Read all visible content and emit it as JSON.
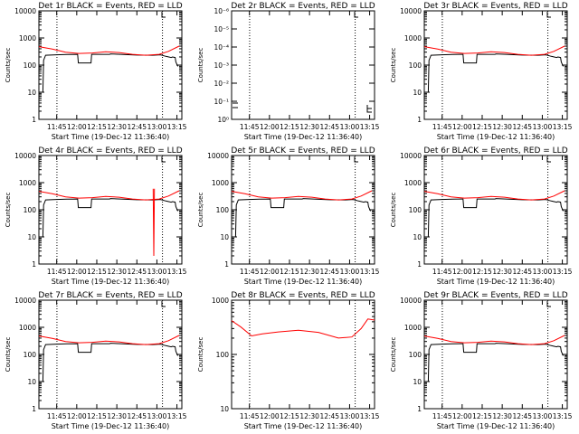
{
  "panels": [
    {
      "title": "Det 1r BLACK = Events, RED = LLD",
      "yticks": [
        "1",
        "10",
        "100",
        "1000",
        "10000"
      ],
      "ylabel": "Counts/sec",
      "xlabel": "Start Time (19-Dec-12 11:36:40)",
      "xticks": [
        "11:45",
        "12:00",
        "12:15",
        "12:30",
        "12:45",
        "13:00",
        "13:15"
      ],
      "type": "normal"
    },
    {
      "title": "Det 2r BLACK = Events, RED = LLD",
      "yticks": [
        "10⁰",
        "10⁻¹",
        "10⁻²",
        "10⁻³",
        "10⁻⁴",
        "10⁻⁵",
        "10⁻⁶"
      ],
      "ylabel": "Counts/sec",
      "xlabel": "Start Time (19-Dec-12 11:36:40)",
      "xticks": [
        "11:45",
        "12:00",
        "12:15",
        "12:30",
        "12:45",
        "13:00",
        "13:15"
      ],
      "type": "empty"
    },
    {
      "title": "Det 3r BLACK = Events, RED = LLD",
      "yticks": [
        "1",
        "10",
        "100",
        "1000",
        "10000"
      ],
      "ylabel": "Counts/sec",
      "xlabel": "Start Time (19-Dec-12 11:36:40)",
      "xticks": [
        "11:45",
        "12:00",
        "12:15",
        "12:30",
        "12:45",
        "13:00",
        "13:15"
      ],
      "type": "normal"
    },
    {
      "title": "Det 4r BLACK = Events, RED = LLD",
      "yticks": [
        "1",
        "10",
        "100",
        "1000",
        "10000"
      ],
      "ylabel": "Counts/sec",
      "xlabel": "Start Time (19-Dec-12 11:36:40)",
      "xticks": [
        "11:45",
        "12:00",
        "12:15",
        "12:30",
        "12:45",
        "13:00",
        "13:15"
      ],
      "type": "normal",
      "spike": true
    },
    {
      "title": "Det 5r BLACK = Events, RED = LLD",
      "yticks": [
        "1",
        "10",
        "100",
        "1000",
        "10000"
      ],
      "ylabel": "Counts/sec",
      "xlabel": "Start Time (19-Dec-12 11:36:40)",
      "xticks": [
        "11:45",
        "12:00",
        "12:15",
        "12:30",
        "12:45",
        "13:00",
        "13:15"
      ],
      "type": "normal"
    },
    {
      "title": "Det 6r BLACK = Events, RED = LLD",
      "yticks": [
        "1",
        "10",
        "100",
        "1000",
        "10000"
      ],
      "ylabel": "Counts/sec",
      "xlabel": "Start Time (19-Dec-12 11:36:40)",
      "xticks": [
        "11:45",
        "12:00",
        "12:15",
        "12:30",
        "12:45",
        "13:00",
        "13:15"
      ],
      "type": "normal"
    },
    {
      "title": "Det 7r BLACK = Events, RED = LLD",
      "yticks": [
        "1",
        "10",
        "100",
        "1000",
        "10000"
      ],
      "ylabel": "Counts/sec",
      "xlabel": "Start Time (19-Dec-12 11:36:40)",
      "xticks": [
        "11:45",
        "12:00",
        "12:15",
        "12:30",
        "12:45",
        "13:00",
        "13:15"
      ],
      "type": "normal"
    },
    {
      "title": "Det 8r BLACK = Events, RED = LLD",
      "yticks": [
        "10",
        "100",
        "1000"
      ],
      "ylabel": "Counts/sec",
      "xlabel": "Start Time (19-Dec-12 11:36:40)",
      "xticks": [
        "11:45",
        "12:00",
        "12:15",
        "12:30",
        "12:45",
        "13:00",
        "13:15"
      ],
      "type": "redonly"
    },
    {
      "title": "Det 9r BLACK = Events, RED = LLD",
      "yticks": [
        "1",
        "10",
        "100",
        "1000",
        "10000"
      ],
      "ylabel": "Counts/sec",
      "xlabel": "Start Time (19-Dec-12 11:36:40)",
      "xticks": [
        "11:45",
        "12:00",
        "12:15",
        "12:30",
        "12:45",
        "13:00",
        "13:15"
      ],
      "type": "normal"
    }
  ],
  "chart_data": {
    "type": "line",
    "x_unit": "minutes since 11:36:40",
    "x_range_minutes": [
      -5,
      102
    ],
    "dotted_vlines_minutes": [
      8.5,
      87.5
    ],
    "colors": {
      "events": "#000000",
      "lld": "#ff0000"
    },
    "red_lld": {
      "x": [
        -5,
        5,
        15,
        25,
        35,
        45,
        55,
        65,
        75,
        85,
        92,
        100
      ],
      "y": [
        480,
        390,
        300,
        270,
        280,
        310,
        290,
        250,
        230,
        250,
        320,
        500
      ]
    },
    "black_events": {
      "x": [
        -2,
        -1.5,
        0,
        8,
        16,
        24,
        24.5,
        34,
        34.5,
        48,
        48.5,
        58,
        68,
        80,
        86,
        90,
        94,
        95,
        97,
        97.5,
        99
      ],
      "y": [
        10,
        150,
        230,
        240,
        245,
        250,
        120,
        120,
        250,
        250,
        260,
        245,
        235,
        230,
        240,
        210,
        190,
        200,
        190,
        130,
        90
      ]
    },
    "det8r_red": {
      "x": [
        -5,
        2,
        10,
        18,
        30,
        45,
        60,
        75,
        85,
        92,
        97,
        102
      ],
      "y": [
        420,
        320,
        220,
        240,
        260,
        280,
        255,
        200,
        210,
        300,
        450,
        430
      ]
    },
    "det4r_spike": {
      "x": [
        80.5,
        81,
        81.5
      ],
      "y": [
        600,
        2,
        600
      ]
    }
  }
}
